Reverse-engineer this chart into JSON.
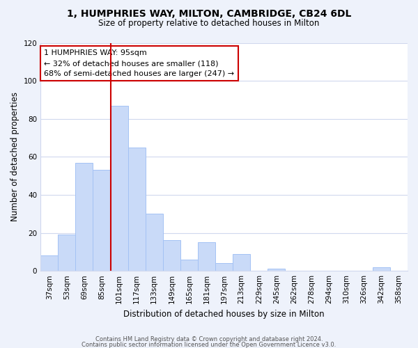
{
  "title": "1, HUMPHRIES WAY, MILTON, CAMBRIDGE, CB24 6DL",
  "subtitle": "Size of property relative to detached houses in Milton",
  "xlabel": "Distribution of detached houses by size in Milton",
  "ylabel": "Number of detached properties",
  "categories": [
    "37sqm",
    "53sqm",
    "69sqm",
    "85sqm",
    "101sqm",
    "117sqm",
    "133sqm",
    "149sqm",
    "165sqm",
    "181sqm",
    "197sqm",
    "213sqm",
    "229sqm",
    "245sqm",
    "262sqm",
    "278sqm",
    "294sqm",
    "310sqm",
    "326sqm",
    "342sqm",
    "358sqm"
  ],
  "values": [
    8,
    19,
    57,
    53,
    87,
    65,
    30,
    16,
    6,
    15,
    4,
    9,
    0,
    1,
    0,
    0,
    0,
    0,
    0,
    2,
    0
  ],
  "bar_color": "#c9daf8",
  "bar_edge_color": "#a4c2f4",
  "vline_color": "#cc0000",
  "annotation_title": "1 HUMPHRIES WAY: 95sqm",
  "annotation_line1": "← 32% of detached houses are smaller (118)",
  "annotation_line2": "68% of semi-detached houses are larger (247) →",
  "annotation_box_edge_color": "#cc0000",
  "ylim": [
    0,
    120
  ],
  "yticks": [
    0,
    20,
    40,
    60,
    80,
    100,
    120
  ],
  "footer_line1": "Contains HM Land Registry data © Crown copyright and database right 2024.",
  "footer_line2": "Contains public sector information licensed under the Open Government Licence v3.0.",
  "background_color": "#eef2fb",
  "plot_background": "#ffffff",
  "grid_color": "#d0d8ee"
}
